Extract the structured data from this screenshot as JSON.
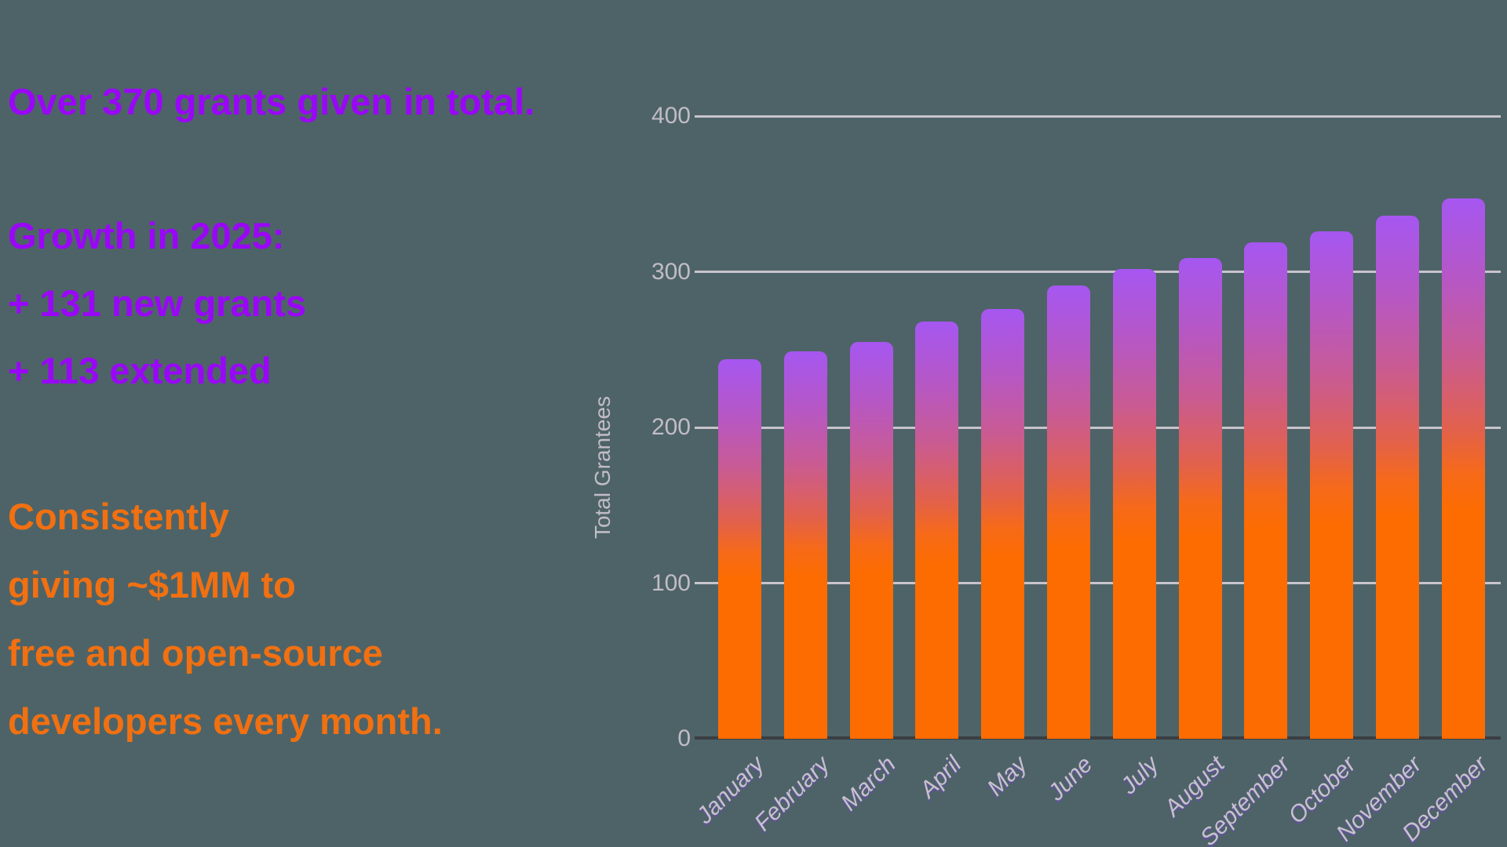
{
  "background": "#4E6367",
  "left_panel": {
    "headline": {
      "text": "Over 370 grants given in total.",
      "color": "#9A06F8"
    },
    "growth_block": {
      "color": "#9A06F8",
      "lines": [
        "Growth in 2025:",
        "+ 131 new grants",
        "+ 113 extended"
      ]
    },
    "giving_block": {
      "color": "#F17011",
      "lines": [
        "Consistently",
        "giving ~$1MM to",
        "free and open-source",
        "developers every month."
      ]
    }
  },
  "chart_data": {
    "type": "bar",
    "title": "",
    "xlabel": "",
    "ylabel": "Total Grantees",
    "categories": [
      "January",
      "February",
      "March",
      "April",
      "May",
      "June",
      "July",
      "August",
      "September",
      "October",
      "November",
      "December"
    ],
    "values": [
      244,
      249,
      255,
      268,
      276,
      291,
      302,
      309,
      319,
      326,
      336,
      347
    ],
    "ylim": [
      0,
      400
    ],
    "yticks": [
      0,
      100,
      200,
      300,
      400
    ],
    "grid": true,
    "legend": "none",
    "colors": {
      "gridline": "#C8C4CC",
      "baseline": "#3A3E42",
      "tick_label": "#C1BCC7",
      "y_axis_title": "#C1BCC7",
      "month_label": "#C7C1CE",
      "month_label_shadow": "#7C3AED",
      "bar_gradient": [
        {
          "offset": 0,
          "color": "#A657F1"
        },
        {
          "offset": 15,
          "color": "#B657C5"
        },
        {
          "offset": 29,
          "color": "#C95B92"
        },
        {
          "offset": 43,
          "color": "#E2614B"
        },
        {
          "offset": 51,
          "color": "#F66A18"
        },
        {
          "offset": 58,
          "color": "#FC6C01"
        },
        {
          "offset": 100,
          "color": "#FC6C01"
        }
      ]
    }
  }
}
